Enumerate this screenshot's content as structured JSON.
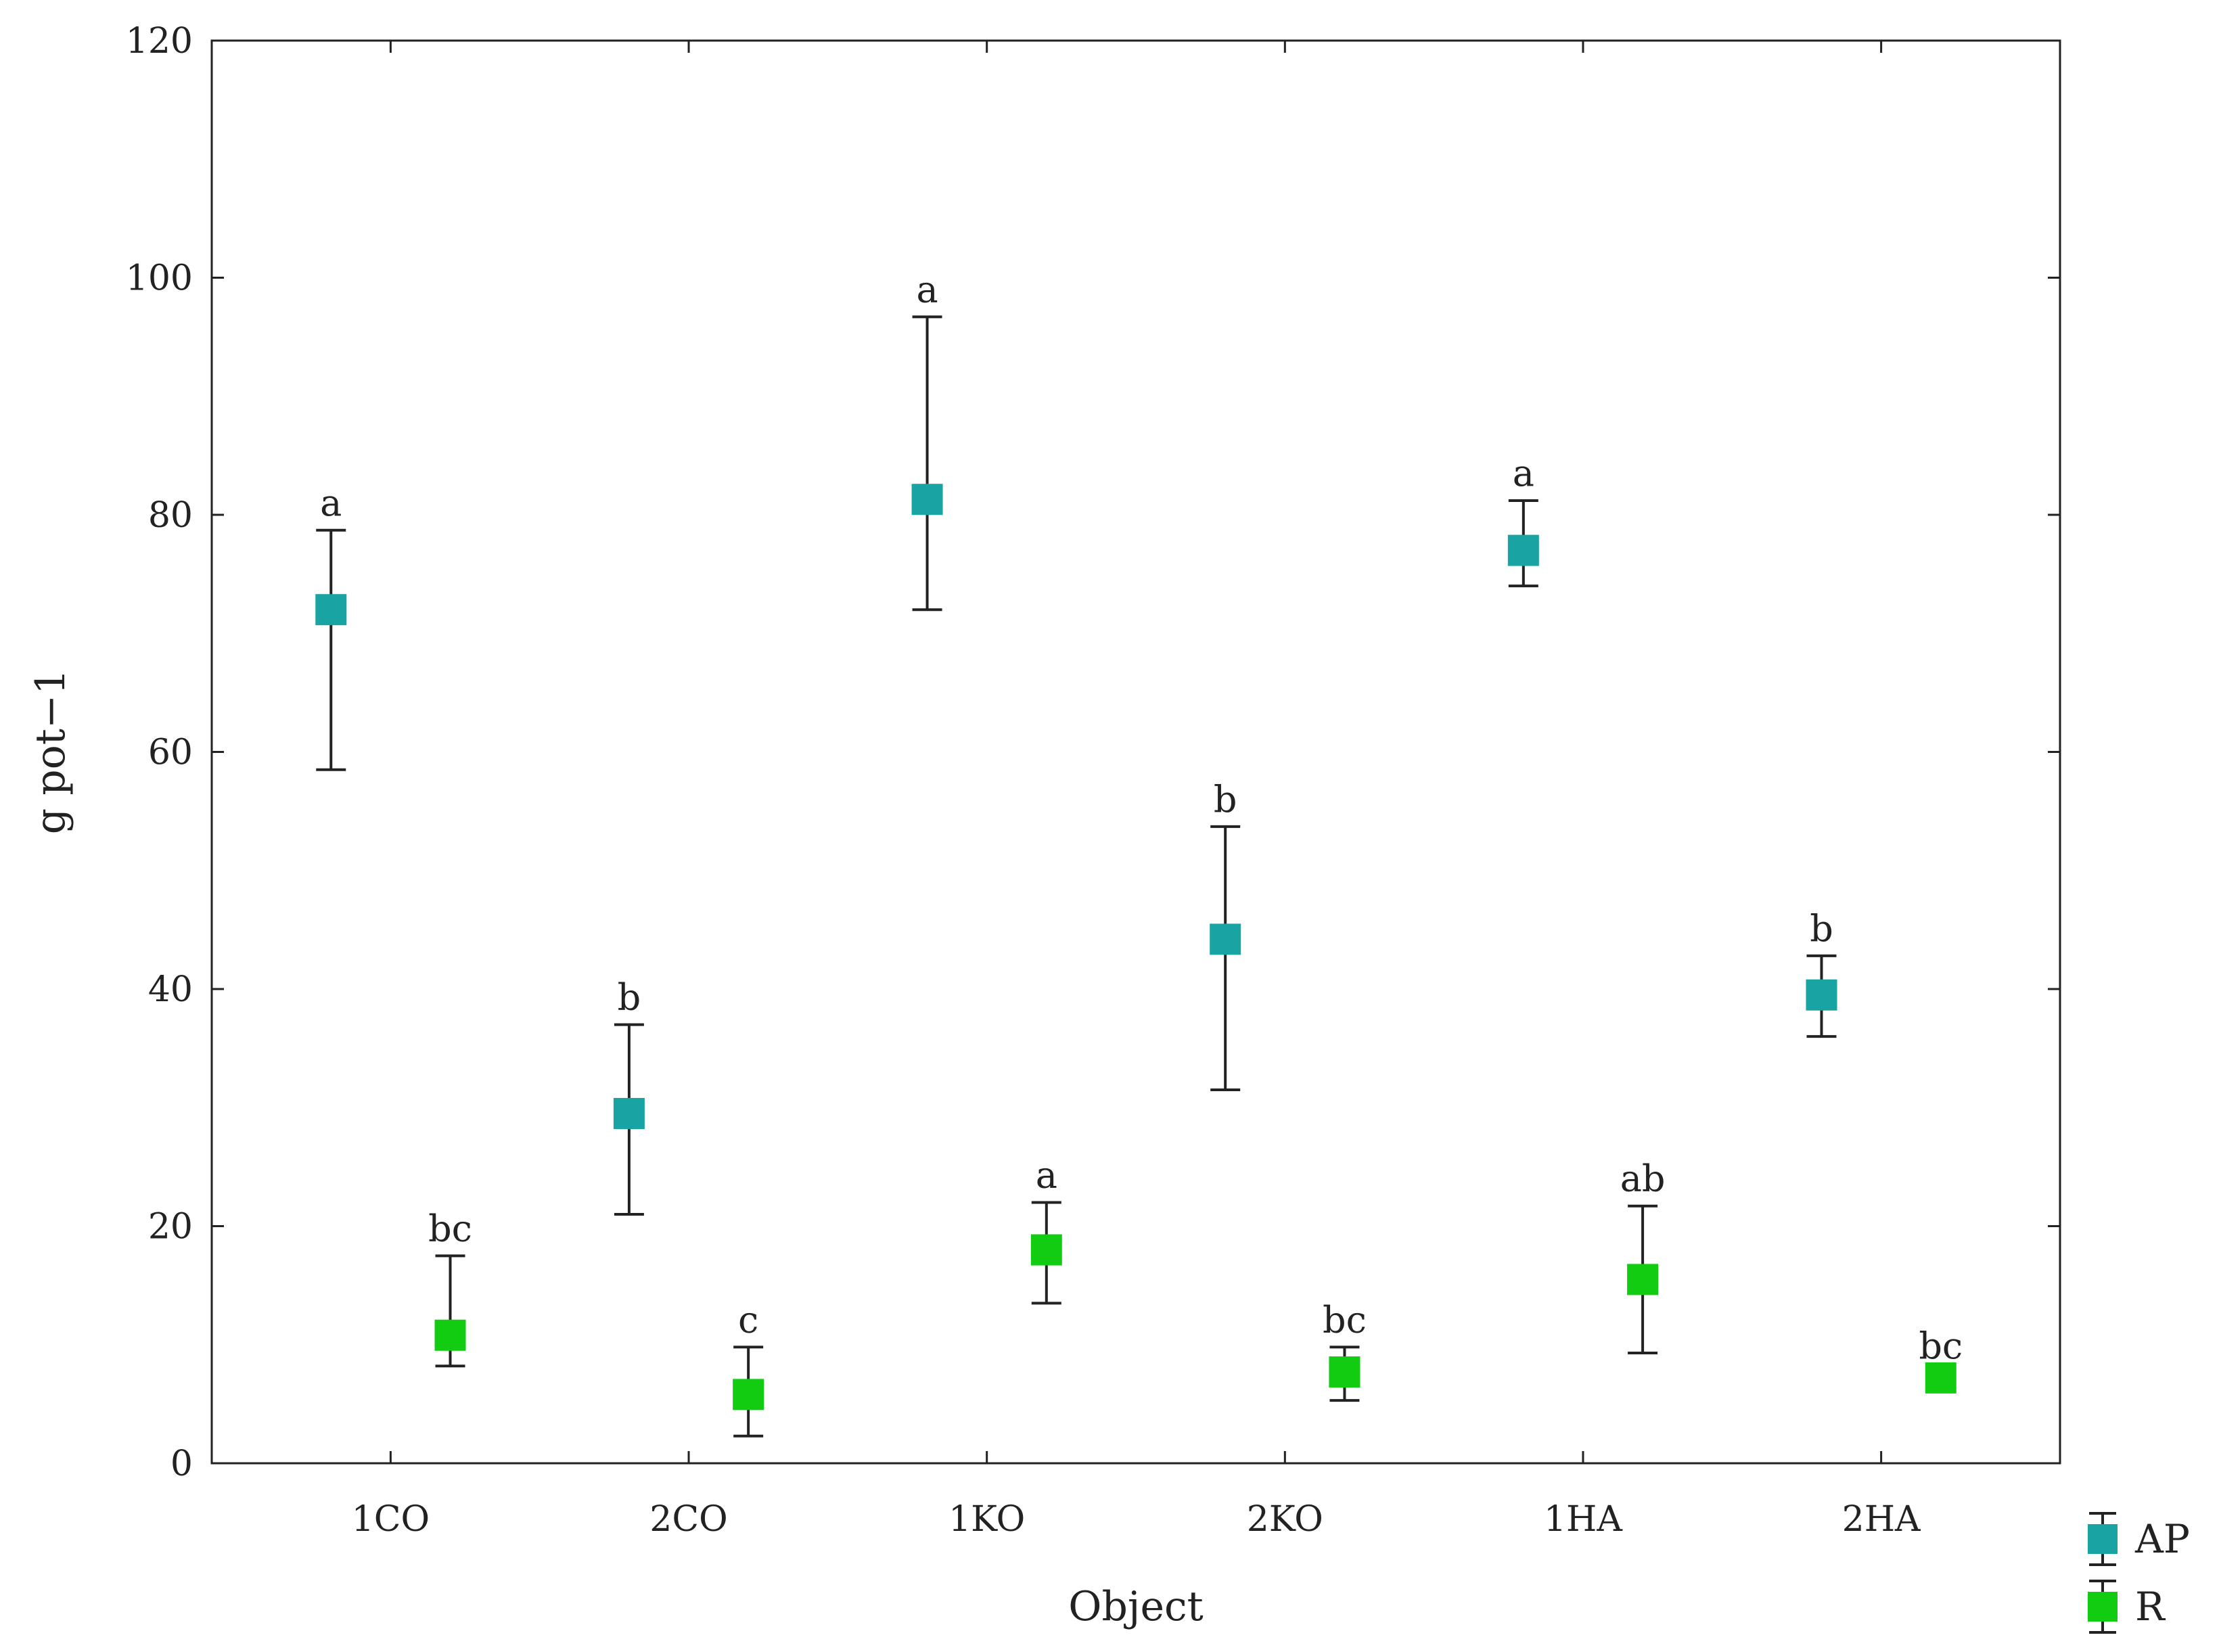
{
  "chart_data": {
    "type": "scatter",
    "xlabel": "Object",
    "ylabel": "g pot−1",
    "ylim": [
      0,
      120
    ],
    "yticks": [
      0,
      20,
      40,
      60,
      80,
      100,
      120
    ],
    "categories": [
      "1CO",
      "2CO",
      "1KO",
      "2KO",
      "1HA",
      "2HA"
    ],
    "grid": false,
    "legend_position": "bottom-right, outside plot",
    "series": [
      {
        "name": "AP",
        "color": "#1aa3a3",
        "marker": "square",
        "offset": "left",
        "values": [
          72,
          29.5,
          81.3,
          44.2,
          77,
          39.5
        ],
        "err_low": [
          58.5,
          21,
          72,
          31.5,
          74,
          36
        ],
        "err_high": [
          78.7,
          37,
          96.7,
          53.7,
          81.2,
          42.8
        ],
        "labels": [
          "a",
          "b",
          "a",
          "b",
          "a",
          "b"
        ]
      },
      {
        "name": "R",
        "color": "#11cc11",
        "marker": "square",
        "offset": "right",
        "values": [
          10.8,
          5.8,
          18,
          7.7,
          15.5,
          7.2
        ],
        "err_low": [
          8.2,
          2.3,
          13.5,
          5.3,
          9.3,
          6.8
        ],
        "err_high": [
          17.5,
          9.8,
          22,
          9.8,
          21.7,
          7.6
        ],
        "labels": [
          "bc",
          "c",
          "a",
          "bc",
          "ab",
          "bc"
        ]
      }
    ]
  }
}
